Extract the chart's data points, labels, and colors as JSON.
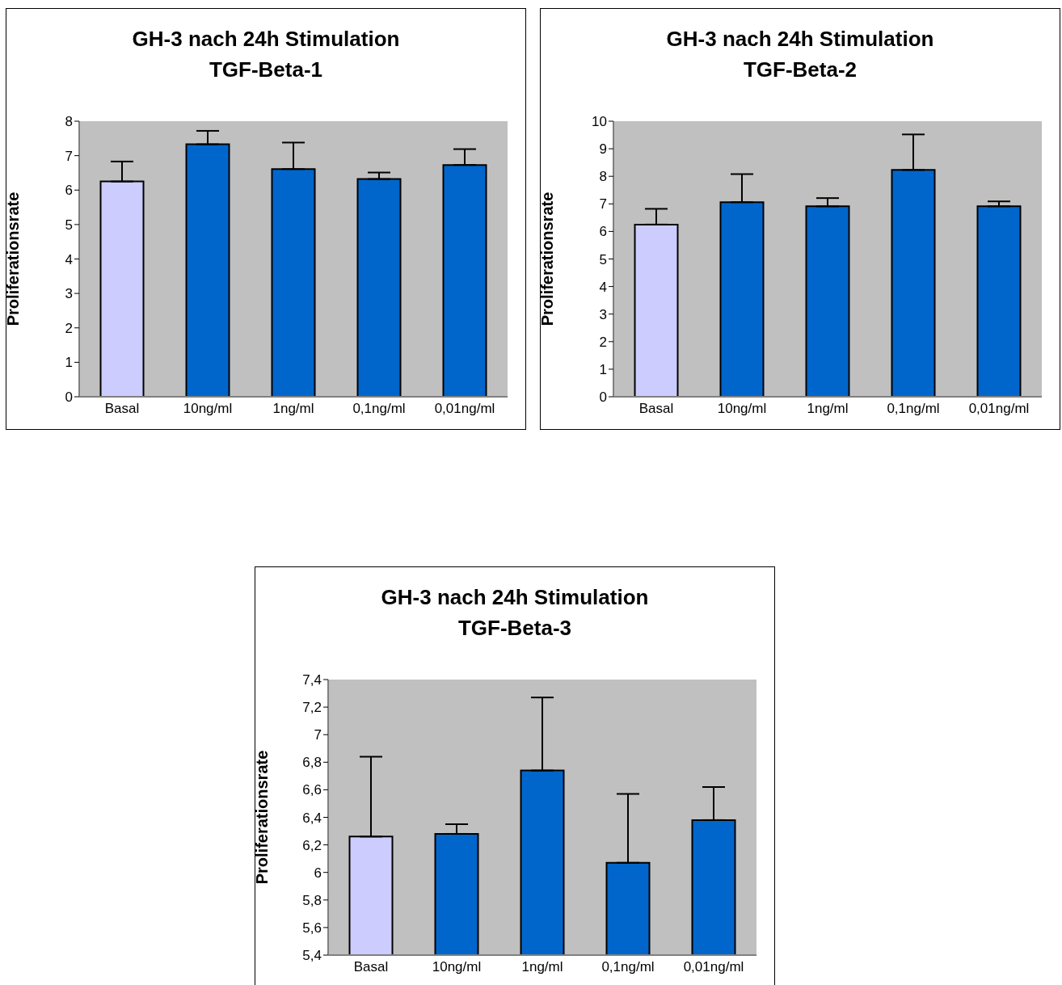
{
  "chart_data": [
    {
      "type": "bar",
      "title": "GH-3 nach 24h Stimulation",
      "subtitle": "TGF-Beta-1",
      "ylabel": "Proliferationsrate",
      "categories": [
        "Basal",
        "10ng/ml",
        "1ng/ml",
        "0,1ng/ml",
        "0,01ng/ml"
      ],
      "values": [
        6.25,
        7.33,
        6.61,
        6.32,
        6.73
      ],
      "colors": [
        "#ccccff",
        "#0066cc",
        "#0066cc",
        "#0066cc",
        "#0066cc"
      ],
      "errors": [
        [
          6.25,
          6.83
        ],
        [
          7.33,
          7.72
        ],
        [
          6.61,
          7.38
        ],
        [
          6.32,
          6.51
        ],
        [
          6.73,
          7.19
        ]
      ],
      "ylim": [
        0,
        8
      ],
      "yticks": [
        0,
        1,
        2,
        3,
        4,
        5,
        6,
        7,
        8
      ],
      "grid": false,
      "legend": false
    },
    {
      "type": "bar",
      "title": "GH-3 nach 24h Stimulation",
      "subtitle": "TGF-Beta-2",
      "ylabel": "Proliferationsrate",
      "categories": [
        "Basal",
        "10ng/ml",
        "1ng/ml",
        "0,1ng/ml",
        "0,01ng/ml"
      ],
      "values": [
        6.25,
        7.06,
        6.91,
        8.23,
        6.91
      ],
      "colors": [
        "#ccccff",
        "#0066cc",
        "#0066cc",
        "#0066cc",
        "#0066cc"
      ],
      "errors": [
        [
          6.25,
          6.82
        ],
        [
          7.06,
          8.08
        ],
        [
          6.91,
          7.21
        ],
        [
          8.23,
          9.52
        ],
        [
          6.91,
          7.09
        ]
      ],
      "ylim": [
        0,
        10
      ],
      "yticks": [
        0,
        1,
        2,
        3,
        4,
        5,
        6,
        7,
        8,
        9,
        10
      ],
      "grid": false,
      "legend": false
    },
    {
      "type": "bar",
      "title": "GH-3 nach 24h Stimulation",
      "subtitle": "TGF-Beta-3",
      "ylabel": "Proliferationsrate",
      "categories": [
        "Basal",
        "10ng/ml",
        "1ng/ml",
        "0,1ng/ml",
        "0,01ng/ml"
      ],
      "values": [
        6.26,
        6.28,
        6.74,
        6.07,
        6.38
      ],
      "colors": [
        "#ccccff",
        "#0066cc",
        "#0066cc",
        "#0066cc",
        "#0066cc"
      ],
      "errors": [
        [
          6.26,
          6.84
        ],
        [
          6.28,
          6.35
        ],
        [
          6.74,
          7.27
        ],
        [
          6.07,
          6.57
        ],
        [
          6.38,
          6.62
        ]
      ],
      "ylim": [
        5.4,
        7.4
      ],
      "yticks": [
        {
          "value": 5.4,
          "label": "5,4"
        },
        {
          "value": 5.6,
          "label": "5,6"
        },
        {
          "value": 5.8,
          "label": "5,8"
        },
        {
          "value": 6,
          "label": "6"
        },
        {
          "value": 6.2,
          "label": "6,2"
        },
        {
          "value": 6.4,
          "label": "6,4"
        },
        {
          "value": 6.6,
          "label": "6,6"
        },
        {
          "value": 6.8,
          "label": "6,8"
        },
        {
          "value": 7,
          "label": "7"
        },
        {
          "value": 7.2,
          "label": "7,2"
        },
        {
          "value": 7.4,
          "label": "7,4"
        }
      ],
      "grid": false,
      "legend": false
    }
  ]
}
